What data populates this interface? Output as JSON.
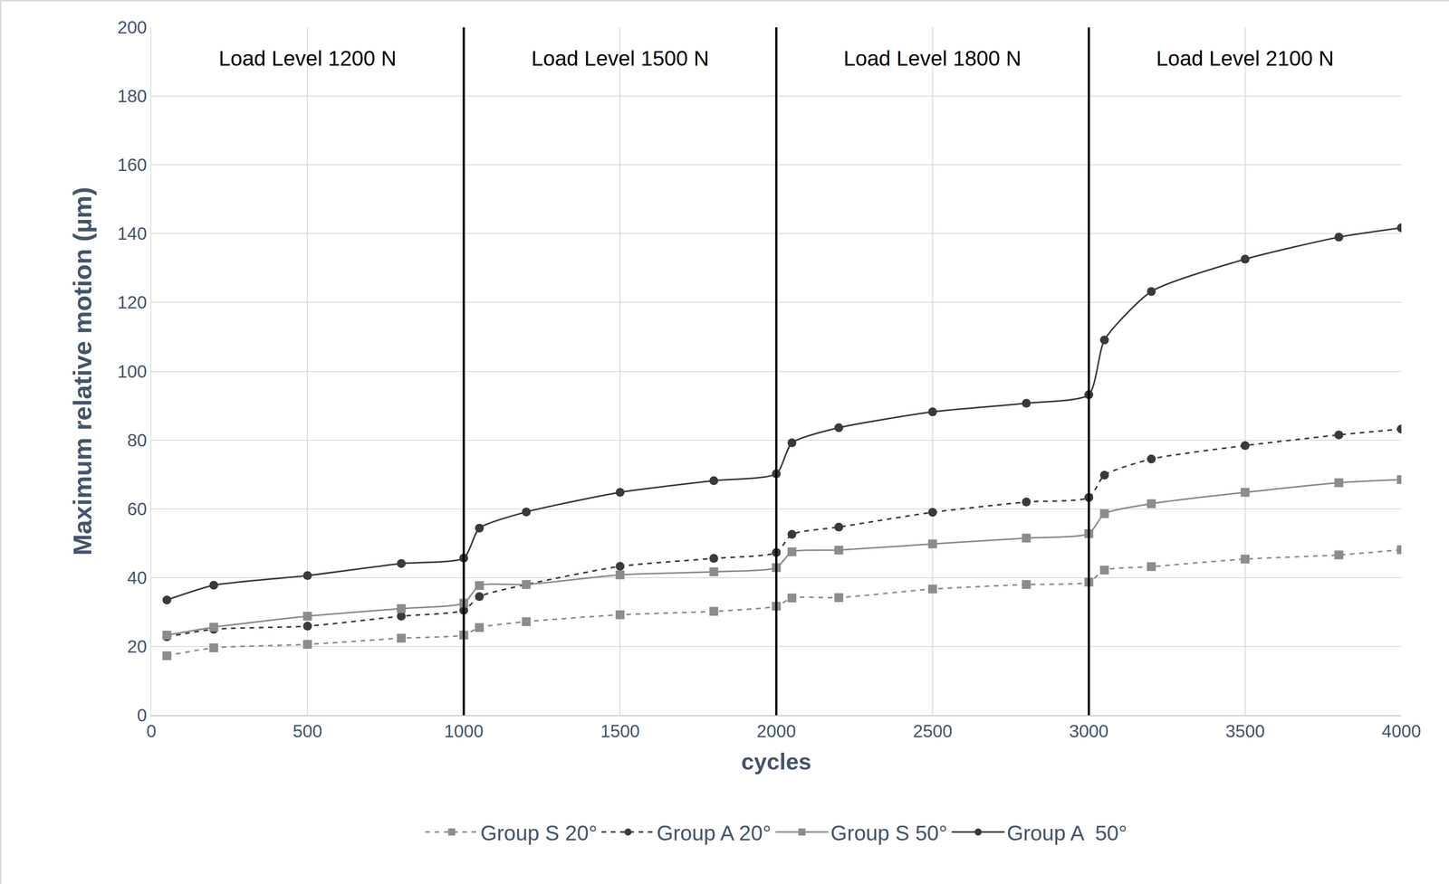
{
  "chart_data": {
    "type": "line",
    "x_label": "cycles",
    "y_label": "Maximum relative motion (µm)",
    "x": [
      50,
      200,
      500,
      800,
      1000,
      1050,
      1200,
      1500,
      1800,
      2000,
      2050,
      2200,
      2500,
      2800,
      3000,
      3050,
      3200,
      3500,
      3800,
      4000
    ],
    "series": [
      {
        "name": "Group S 20°",
        "color": "#8c8c8c",
        "marker": "square",
        "line_style": "dashed",
        "values": [
          17.3,
          19.6,
          20.6,
          22.4,
          23.3,
          25.5,
          27.2,
          29.2,
          30.2,
          31.7,
          34.1,
          34.2,
          36.7,
          38.0,
          38.7,
          42.2,
          43.2,
          45.4,
          46.6,
          48.1
        ]
      },
      {
        "name": "Group A 20°",
        "color": "#3a3a3a",
        "marker": "circle",
        "line_style": "dashed",
        "values": [
          22.8,
          25.0,
          25.9,
          28.8,
          30.5,
          34.5,
          38.0,
          43.3,
          45.6,
          47.3,
          52.6,
          54.7,
          59.0,
          62.0,
          63.3,
          69.8,
          74.5,
          78.4,
          81.5,
          83.2
        ]
      },
      {
        "name": "Group S 50°",
        "color": "#8c8c8c",
        "marker": "square",
        "line_style": "solid",
        "values": [
          23.3,
          25.6,
          28.8,
          31.0,
          32.6,
          37.7,
          38.0,
          40.8,
          41.7,
          42.9,
          47.5,
          48.0,
          49.8,
          51.5,
          52.8,
          58.6,
          61.5,
          64.8,
          67.6,
          68.5
        ]
      },
      {
        "name": "Group A  50°",
        "color": "#3a3a3a",
        "marker": "circle",
        "line_style": "solid",
        "values": [
          33.5,
          37.8,
          40.6,
          44.1,
          45.7,
          54.4,
          59.1,
          64.8,
          68.2,
          70.2,
          79.2,
          83.6,
          88.2,
          90.7,
          93.2,
          109.1,
          123.2,
          132.6,
          139.0,
          141.7
        ]
      }
    ],
    "load_levels": [
      {
        "label": "Load Level 1200 N",
        "from": 0,
        "to": 1000
      },
      {
        "label": "Load Level 1500 N",
        "from": 1000,
        "to": 2000
      },
      {
        "label": "Load Level 1800 N",
        "from": 2000,
        "to": 3000
      },
      {
        "label": "Load Level 2100 N",
        "from": 3000,
        "to": 4000
      }
    ],
    "xlim": [
      0,
      4000
    ],
    "xticks": [
      0,
      500,
      1000,
      1500,
      2000,
      2500,
      3000,
      3500,
      4000
    ],
    "ylim": [
      0,
      200
    ],
    "yticks": [
      0,
      20,
      40,
      60,
      80,
      100,
      120,
      140,
      160,
      180,
      200
    ],
    "grid": true,
    "legend": "bottom"
  }
}
